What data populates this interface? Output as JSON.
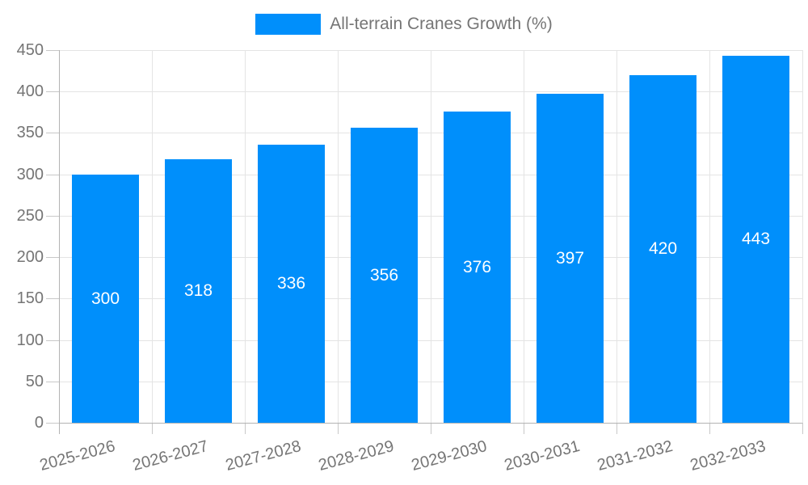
{
  "legend": {
    "label": "All-terrain Cranes Growth (%)"
  },
  "chart_data": {
    "type": "bar",
    "title": "All-terrain Cranes Growth (%)",
    "categories": [
      "2025-2026",
      "2026-2027",
      "2027-2028",
      "2028-2029",
      "2029-2030",
      "2030-2031",
      "2031-2032",
      "2032-2033"
    ],
    "values": [
      300,
      318,
      336,
      356,
      376,
      397,
      420,
      443
    ],
    "series": [
      {
        "name": "All-terrain Cranes Growth (%)",
        "values": [
          300,
          318,
          336,
          356,
          376,
          397,
          420,
          443
        ]
      }
    ],
    "xlabel": "",
    "ylabel": "",
    "ylim": [
      0,
      450
    ],
    "ytick_step": 50,
    "ytick_labels": [
      "0",
      "50",
      "100",
      "150",
      "200",
      "250",
      "300",
      "350",
      "400",
      "450"
    ],
    "grid": true,
    "legend_position": "top",
    "value_labels_shown": true,
    "colors": {
      "bar": "#008FFB",
      "value_label": "#ffffff",
      "tick_label": "#757575",
      "grid": "#e4e4e4",
      "axis": "#b3b3b3",
      "tick_mark": "#c8c8c8",
      "background": "#ffffff"
    }
  }
}
